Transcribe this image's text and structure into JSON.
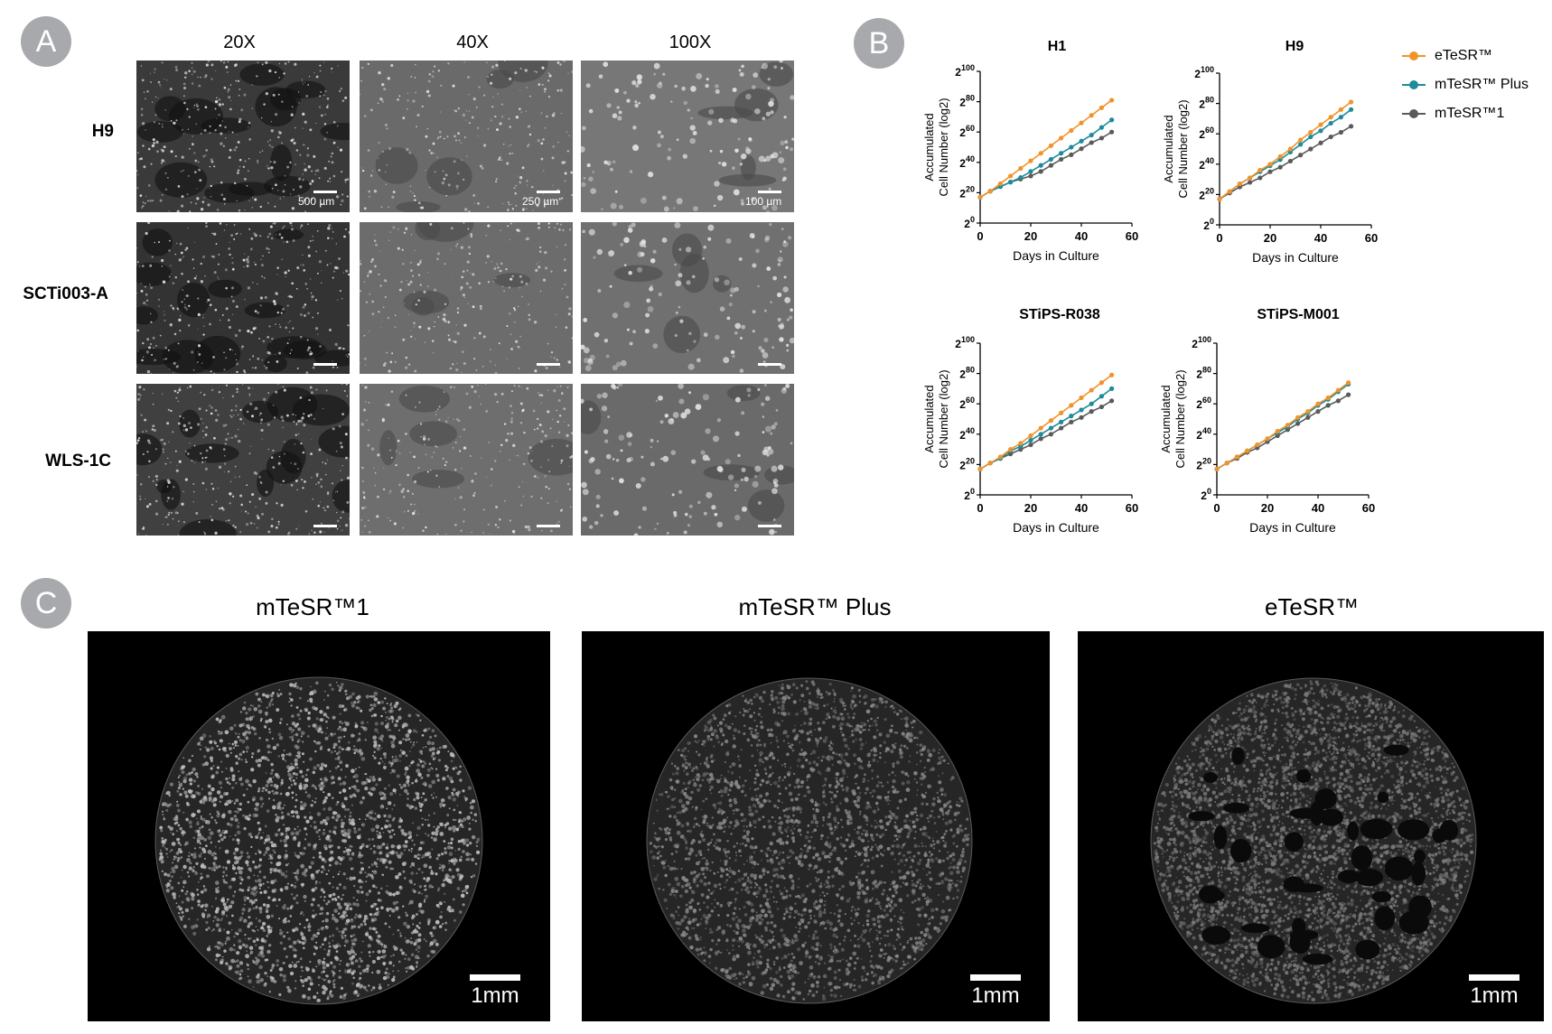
{
  "panels": {
    "a_label": "A",
    "b_label": "B",
    "c_label": "C"
  },
  "panel_a": {
    "columns": [
      "20X",
      "40X",
      "100X"
    ],
    "rows": [
      "H9",
      "SCTi003-A",
      "WLS-1C"
    ],
    "scale_labels": [
      "500 µm",
      "250 µm",
      "100 µm"
    ]
  },
  "panel_c": {
    "titles": [
      "mTeSR™1",
      "mTeSR™ Plus",
      "eTeSR™"
    ],
    "scale_label": "1mm"
  },
  "colors": {
    "eTeSR": "#f0932b",
    "mTeSR_Plus": "#1f8a99",
    "mTeSR1": "#5a5a5a",
    "badge": "#a7a9ac"
  },
  "chart_data": [
    {
      "type": "line",
      "title": "H1",
      "xlabel": "Days in Culture",
      "ylabel": "Accumulated Cell Number (log2)",
      "xlim": [
        0,
        60
      ],
      "ylim": [
        0,
        100
      ],
      "xticks": [
        "0",
        "20",
        "40",
        "60"
      ],
      "yticks": [
        {
          "base": "2",
          "exp": "0"
        },
        {
          "base": "2",
          "exp": "20"
        },
        {
          "base": "2",
          "exp": "40"
        },
        {
          "base": "2",
          "exp": "60"
        },
        {
          "base": "2",
          "exp": "80"
        },
        {
          "base": "2",
          "exp": "100"
        }
      ],
      "x": [
        0,
        4,
        8,
        12,
        16,
        20,
        24,
        28,
        32,
        36,
        40,
        44,
        48,
        52
      ],
      "series": [
        {
          "name": "eTeSR™",
          "color": "#f0932b",
          "values": [
            17,
            21,
            26,
            31,
            36,
            41,
            46,
            51,
            56,
            61,
            66,
            71,
            76,
            81
          ]
        },
        {
          "name": "mTeSR™ Plus",
          "color": "#1f8a99",
          "values": [
            17,
            21,
            24,
            27,
            30,
            34,
            38,
            42,
            46,
            50,
            54,
            58,
            63,
            68
          ]
        },
        {
          "name": "mTeSR™1",
          "color": "#5a5a5a",
          "values": [
            17,
            21,
            24,
            27,
            29,
            31,
            34,
            38,
            42,
            45,
            49,
            53,
            56,
            60
          ]
        }
      ]
    },
    {
      "type": "line",
      "title": "H9",
      "xlabel": "Days in Culture",
      "ylabel": "Accumulated Cell Number (log2)",
      "xlim": [
        0,
        60
      ],
      "ylim": [
        0,
        100
      ],
      "xticks": [
        "0",
        "20",
        "40",
        "60"
      ],
      "yticks": [
        {
          "base": "2",
          "exp": "0"
        },
        {
          "base": "2",
          "exp": "20"
        },
        {
          "base": "2",
          "exp": "40"
        },
        {
          "base": "2",
          "exp": "60"
        },
        {
          "base": "2",
          "exp": "80"
        },
        {
          "base": "2",
          "exp": "100"
        }
      ],
      "x": [
        0,
        4,
        8,
        12,
        16,
        20,
        24,
        28,
        32,
        36,
        40,
        44,
        48,
        52
      ],
      "series": [
        {
          "name": "eTeSR™",
          "color": "#f0932b",
          "values": [
            17,
            22,
            27,
            31,
            36,
            40,
            45,
            50,
            56,
            61,
            66,
            71,
            76,
            81
          ]
        },
        {
          "name": "mTeSR™ Plus",
          "color": "#1f8a99",
          "values": [
            17,
            22,
            27,
            31,
            35,
            39,
            43,
            48,
            53,
            58,
            62,
            67,
            71,
            76
          ]
        },
        {
          "name": "mTeSR™1",
          "color": "#5a5a5a",
          "values": [
            17,
            21,
            25,
            28,
            31,
            35,
            38,
            42,
            46,
            50,
            54,
            58,
            61,
            65
          ]
        }
      ]
    },
    {
      "type": "line",
      "title": "STiPS-R038",
      "xlabel": "Days in Culture",
      "ylabel": "Accumulated Cell Number (log2)",
      "xlim": [
        0,
        60
      ],
      "ylim": [
        0,
        100
      ],
      "xticks": [
        "0",
        "20",
        "40",
        "60"
      ],
      "yticks": [
        {
          "base": "2",
          "exp": "0"
        },
        {
          "base": "2",
          "exp": "20"
        },
        {
          "base": "2",
          "exp": "40"
        },
        {
          "base": "2",
          "exp": "60"
        },
        {
          "base": "2",
          "exp": "80"
        },
        {
          "base": "2",
          "exp": "100"
        }
      ],
      "x": [
        0,
        4,
        8,
        12,
        16,
        20,
        24,
        28,
        32,
        36,
        40,
        44,
        48,
        52
      ],
      "series": [
        {
          "name": "eTeSR™",
          "color": "#f0932b",
          "values": [
            17,
            21,
            25,
            30,
            34,
            39,
            44,
            49,
            54,
            59,
            64,
            69,
            74,
            79
          ]
        },
        {
          "name": "mTeSR™ Plus",
          "color": "#1f8a99",
          "values": [
            17,
            21,
            24,
            29,
            32,
            36,
            40,
            44,
            48,
            52,
            56,
            60,
            65,
            70
          ]
        },
        {
          "name": "mTeSR™1",
          "color": "#5a5a5a",
          "values": [
            17,
            21,
            24,
            27,
            30,
            33,
            37,
            40,
            44,
            48,
            51,
            55,
            58,
            62
          ]
        }
      ]
    },
    {
      "type": "line",
      "title": "STiPS-M001",
      "xlabel": "Days in Culture",
      "ylabel": "Accumulated Cell Number (log2)",
      "xlim": [
        0,
        60
      ],
      "ylim": [
        0,
        100
      ],
      "xticks": [
        "0",
        "20",
        "40",
        "60"
      ],
      "yticks": [
        {
          "base": "2",
          "exp": "0"
        },
        {
          "base": "2",
          "exp": "20"
        },
        {
          "base": "2",
          "exp": "40"
        },
        {
          "base": "2",
          "exp": "60"
        },
        {
          "base": "2",
          "exp": "80"
        },
        {
          "base": "2",
          "exp": "100"
        }
      ],
      "x": [
        0,
        4,
        8,
        12,
        16,
        20,
        24,
        28,
        32,
        36,
        40,
        44,
        48,
        52
      ],
      "series": [
        {
          "name": "eTeSR™",
          "color": "#f0932b",
          "values": [
            17,
            21,
            25,
            29,
            33,
            37,
            42,
            46,
            51,
            55,
            60,
            64,
            69,
            74
          ]
        },
        {
          "name": "mTeSR™ Plus",
          "color": "#1f8a99",
          "values": [
            17,
            21,
            25,
            29,
            33,
            37,
            41,
            45,
            50,
            54,
            59,
            63,
            68,
            73
          ]
        },
        {
          "name": "mTeSR™1",
          "color": "#5a5a5a",
          "values": [
            17,
            21,
            24,
            28,
            31,
            35,
            39,
            43,
            47,
            51,
            55,
            59,
            62,
            66
          ]
        }
      ]
    }
  ],
  "legend": [
    "eTeSR™",
    "mTeSR™ Plus",
    "mTeSR™1"
  ]
}
